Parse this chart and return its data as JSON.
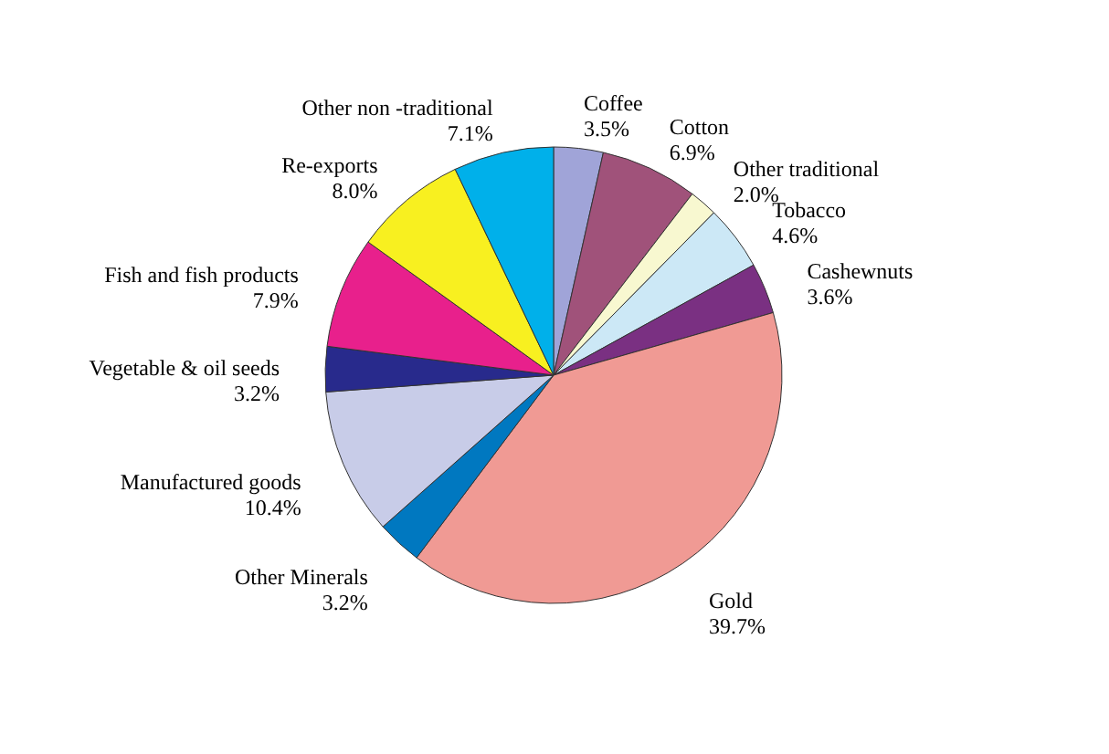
{
  "chart_data": {
    "type": "pie",
    "categories": [
      "Coffee",
      "Cotton",
      "Other traditional",
      "Tobacco",
      "Cashewnuts",
      "Gold",
      "Other Minerals",
      "Manufactured goods",
      "Vegetable & oil seeds",
      "Fish and fish products",
      "Re-exports",
      "Other non -traditional"
    ],
    "values": [
      3.5,
      6.9,
      2.0,
      4.6,
      3.6,
      39.7,
      3.2,
      10.4,
      3.2,
      7.9,
      8.0,
      7.1
    ],
    "value_labels": [
      "3.5%",
      "6.9%",
      "2.0%",
      "4.6%",
      "3.6%",
      "39.7%",
      "3.2%",
      "10.4%",
      "3.2%",
      "7.9%",
      "8.0%",
      "7.1%"
    ],
    "colors": [
      "#a0a4d8",
      "#a0527a",
      "#f8f8d0",
      "#cce8f6",
      "#7a3082",
      "#f09a94",
      "#0078c0",
      "#c8cce8",
      "#282a8c",
      "#e8208c",
      "#f8f020",
      "#00b0ea"
    ],
    "legend": false
  }
}
